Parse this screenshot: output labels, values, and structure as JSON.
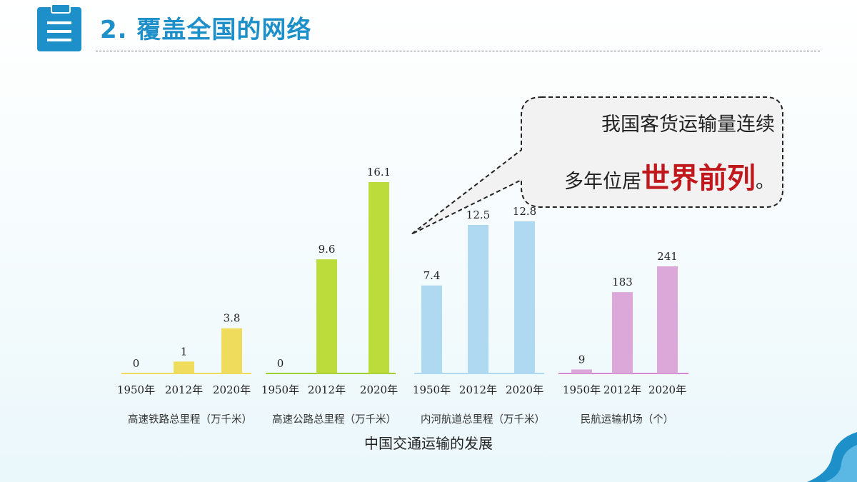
{
  "header": {
    "title": "2. 覆盖全国的网络",
    "icon": "clipboard-list-icon",
    "accent_color": "#1d8fc9"
  },
  "callout": {
    "line1": "我国客货运输量连续",
    "line2_prefix": "多年位居",
    "line2_highlight": "世界前列",
    "line2_suffix": "。",
    "highlight_color": "#c0181d"
  },
  "chart_data": {
    "type": "bar",
    "title": "中国交通运输的发展",
    "groups": [
      {
        "name": "高速铁路总里程（万千米）",
        "color": "#efdc5c",
        "axis_color": "#efdc5c",
        "categories": [
          "1950年",
          "2012年",
          "2020年"
        ],
        "values": [
          0,
          1,
          3.8
        ],
        "labels": [
          "0",
          "1",
          "3.8"
        ]
      },
      {
        "name": "高速公路总里程（万千米）",
        "color": "#bcdc3c",
        "axis_color": "#9fcf30",
        "categories": [
          "1950年",
          "2012年",
          "2020年"
        ],
        "values": [
          0,
          9.6,
          16.1
        ],
        "labels": [
          "0",
          "9.6",
          "16.1"
        ]
      },
      {
        "name": "内河航道总里程（万千米）",
        "color": "#aed9f0",
        "axis_color": "#aed9f0",
        "categories": [
          "1950年",
          "2012年",
          "2020年"
        ],
        "values": [
          7.4,
          12.5,
          12.8
        ],
        "labels": [
          "7.4",
          "12.5",
          "12.8"
        ]
      },
      {
        "name": "民航运输机场（个）",
        "color": "#dca8d9",
        "axis_color": "#d487d0",
        "categories": [
          "1950年",
          "2012年",
          "2020年"
        ],
        "values": [
          9,
          183,
          241
        ],
        "labels": [
          "9",
          "183",
          "241"
        ]
      }
    ]
  }
}
